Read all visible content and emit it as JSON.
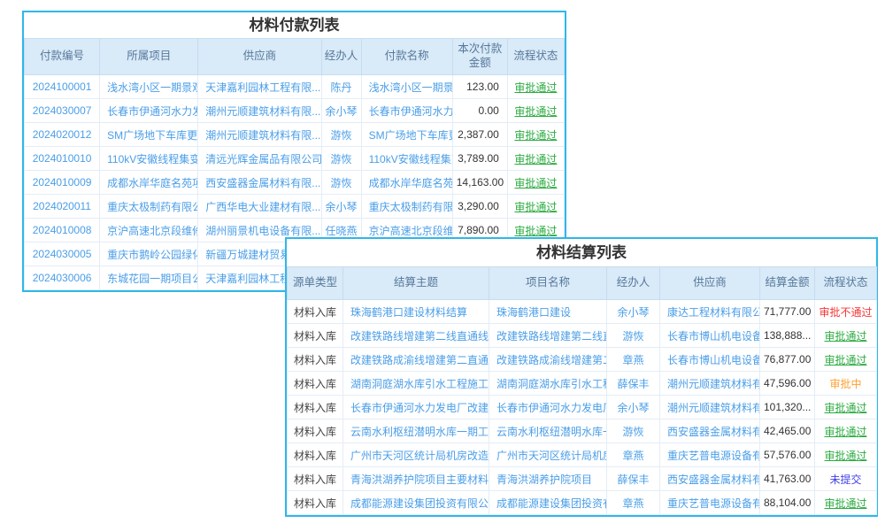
{
  "colors": {
    "panel_border": "#2fb7e9",
    "header_background": "#d9eaf8",
    "header_text": "#56789a",
    "link_text": "#4a9ee8",
    "status": {
      "approved": "#2bab40",
      "rejected": "#f53535",
      "pending": "#ffa02e",
      "draft": "#4040e8"
    }
  },
  "payment_table": {
    "title": "材料付款列表",
    "columns": [
      "付款编号",
      "所属项目",
      "供应商",
      "经办人",
      "付款名称",
      "本次付款金额",
      "流程状态"
    ],
    "rows": [
      {
        "no": "2024100001",
        "project": "浅水湾小区一期景观提...",
        "supplier": "天津嘉利园林工程有限...",
        "handler": "陈丹",
        "name": "浅水湾小区一期景...",
        "amount": "123.00",
        "status": "审批通过",
        "status_type": "approved"
      },
      {
        "no": "2024030007",
        "project": "长春市伊通河水力发电...",
        "supplier": "潮州元顺建筑材料有限...",
        "handler": "余小琴",
        "name": "长春市伊通河水力...",
        "amount": "0.00",
        "status": "审批通过",
        "status_type": "approved"
      },
      {
        "no": "2024020012",
        "project": "SM广场地下车库更换摄...",
        "supplier": "潮州元顺建筑材料有限...",
        "handler": "游恢",
        "name": "SM广场地下车库更...",
        "amount": "2,387.00",
        "status": "审批通过",
        "status_type": "approved"
      },
      {
        "no": "2024010010",
        "project": "110kV安徽线程集变开断...",
        "supplier": "清远光辉金属品有限公司",
        "handler": "游恢",
        "name": "110kV安徽线程集变...",
        "amount": "3,789.00",
        "status": "审批通过",
        "status_type": "approved"
      },
      {
        "no": "2024010009",
        "project": "成都水岸华庭名苑项目...",
        "supplier": "西安盛器金属材料有限...",
        "handler": "游恢",
        "name": "成都水岸华庭名苑...",
        "amount": "14,163.00",
        "status": "审批通过",
        "status_type": "approved"
      },
      {
        "no": "2024020011",
        "project": "重庆太极制药有限公司...",
        "supplier": "广西华电大业建材有限...",
        "handler": "余小琴",
        "name": "重庆太极制药有限...",
        "amount": "3,290.00",
        "status": "审批通过",
        "status_type": "approved"
      },
      {
        "no": "2024010008",
        "project": "京沪高速北京段维修",
        "supplier": "湖州丽景机电设备有限...",
        "handler": "任晓燕",
        "name": "京沪高速北京段维...",
        "amount": "7,890.00",
        "status": "审批通过",
        "status_type": "approved"
      },
      {
        "no": "2024030005",
        "project": "重庆市鹅岭公园绿化景...",
        "supplier": "新疆万城建材贸易有",
        "handler": "",
        "name": "",
        "amount": "",
        "status": "",
        "status_type": ""
      },
      {
        "no": "2024030006",
        "project": "东城花园一期项目公寓...",
        "supplier": "天津嘉利园林工程有",
        "handler": "",
        "name": "",
        "amount": "",
        "status": "",
        "status_type": ""
      }
    ]
  },
  "settlement_table": {
    "title": "材料结算列表",
    "columns": [
      "源单类型",
      "结算主题",
      "项目名称",
      "经办人",
      "供应商",
      "结算金额",
      "流程状态"
    ],
    "rows": [
      {
        "source_type": "材料入库",
        "subject": "珠海鹤港口建设材料结算",
        "project": "珠海鹤港口建设",
        "handler": "余小琴",
        "supplier": "康达工程材料有限公司",
        "amount": "71,777.00",
        "status": "审批不通过",
        "status_type": "rejected"
      },
      {
        "source_type": "材料入库",
        "subject": "改建铁路线增建第二线直通线（成...",
        "project": "改建铁路线增建第二线直...",
        "handler": "游恢",
        "supplier": "长春市博山机电设备...",
        "amount": "138,888...",
        "status": "审批通过",
        "status_type": "approved"
      },
      {
        "source_type": "材料入库",
        "subject": "改建铁路成渝线增建第二直通线（...",
        "project": "改建铁路成渝线增建第二...",
        "handler": "章燕",
        "supplier": "长春市博山机电设备...",
        "amount": "76,877.00",
        "status": "审批通过",
        "status_type": "approved"
      },
      {
        "source_type": "材料入库",
        "subject": "湖南洞庭湖水库引水工程施工标材...",
        "project": "湖南洞庭湖水库引水工程...",
        "handler": "薛保丰",
        "supplier": "潮州元顺建筑材料有...",
        "amount": "47,596.00",
        "status": "审批中",
        "status_type": "pending"
      },
      {
        "source_type": "材料入库",
        "subject": "长春市伊通河水力发电厂改建工程...",
        "project": "长春市伊通河水力发电厂...",
        "handler": "余小琴",
        "supplier": "潮州元顺建筑材料有...",
        "amount": "101,320...",
        "status": "审批通过",
        "status_type": "approved"
      },
      {
        "source_type": "材料入库",
        "subject": "云南水利枢纽潜明水库一期工程施...",
        "project": "云南水利枢纽潜明水库一...",
        "handler": "游恢",
        "supplier": "西安盛器金属材料有...",
        "amount": "42,465.00",
        "status": "审批通过",
        "status_type": "approved"
      },
      {
        "source_type": "材料入库",
        "subject": "广州市天河区统计局机房改造项目...",
        "project": "广州市天河区统计局机房...",
        "handler": "章燕",
        "supplier": "重庆艺普电源设备有...",
        "amount": "57,576.00",
        "status": "审批通过",
        "status_type": "approved"
      },
      {
        "source_type": "材料入库",
        "subject": "青海洪湖养护院项目主要材料结算",
        "project": "青海洪湖养护院项目",
        "handler": "薛保丰",
        "supplier": "西安盛器金属材料有...",
        "amount": "41,763.00",
        "status": "未提交",
        "status_type": "draft"
      },
      {
        "source_type": "材料入库",
        "subject": "成都能源建设集团投资有限公司临...",
        "project": "成都能源建设集团投资有...",
        "handler": "章燕",
        "supplier": "重庆艺普电源设备有...",
        "amount": "88,104.00",
        "status": "审批通过",
        "status_type": "approved"
      }
    ]
  }
}
